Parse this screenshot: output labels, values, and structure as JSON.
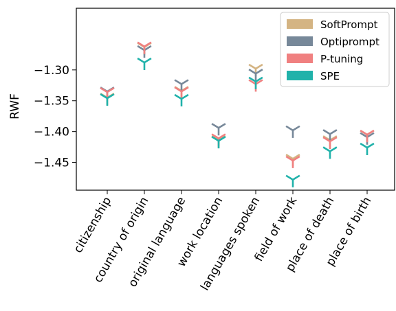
{
  "chart_data": {
    "type": "scatter",
    "marker": "tri-down",
    "ylabel": "RWF",
    "xlabel": "",
    "title": "",
    "ylim": [
      -1.495,
      -1.2
    ],
    "yticks": [
      -1.45,
      -1.4,
      -1.35,
      -1.3
    ],
    "ytick_labels": [
      "−1.45",
      "−1.40",
      "−1.35",
      "−1.30"
    ],
    "categories": [
      "citizenship",
      "country of origin",
      "original language",
      "work location",
      "languages spoken",
      "field of work",
      "place of death",
      "place of birth"
    ],
    "legend_position": "upper right",
    "series": [
      {
        "name": "SoftPrompt",
        "color": "#d4b483",
        "values": [
          -1.345,
          -1.263,
          -1.334,
          -1.414,
          -1.298,
          -1.444,
          -1.414,
          -1.405
        ]
      },
      {
        "name": "Optiprompt",
        "color": "#778899",
        "values": [
          -1.335,
          -1.268,
          -1.323,
          -1.394,
          -1.306,
          -1.398,
          -1.404,
          -1.409
        ]
      },
      {
        "name": "P-tuning",
        "color": "#f08080",
        "values": [
          -1.336,
          -1.262,
          -1.335,
          -1.411,
          -1.323,
          -1.447,
          -1.416,
          -1.405
        ]
      },
      {
        "name": "SPE",
        "color": "#20b2aa",
        "values": [
          -1.346,
          -1.288,
          -1.347,
          -1.415,
          -1.319,
          -1.478,
          -1.432,
          -1.426
        ]
      }
    ]
  }
}
